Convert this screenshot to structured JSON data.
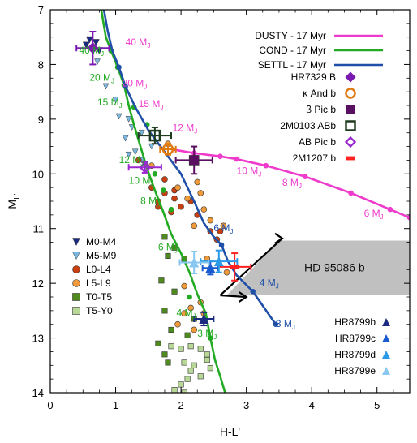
{
  "chart_data": {
    "type": "scatter",
    "xlabel": "H-L'",
    "ylabel": "M_L'",
    "xlim": [
      0,
      5.5
    ],
    "ylim": [
      14,
      7
    ],
    "y_inverted": true,
    "x_ticks": [
      "0",
      "1",
      "2",
      "3",
      "4",
      "5"
    ],
    "y_ticks": [
      "7",
      "8",
      "9",
      "10",
      "11",
      "12",
      "13",
      "14"
    ],
    "colors": {
      "dusty": "#ee3bcc",
      "cond": "#22aa22",
      "settl": "#1f4fa8",
      "m0m4": "#1a2a80",
      "m5m9": "#7ab8e0",
      "l0l4": "#c84010",
      "l5l9": "#f09a3a",
      "t0t5": "#4f8a1e",
      "t5y0": "#b8d898",
      "hr7329": "#7a1ab0",
      "kand": "#e07a10",
      "betapic": "#5a1060",
      "twom0103": "#203c20",
      "abpic": "#9a2ad0",
      "twom1207": "#ff2020",
      "hr8799b": "#1a2a80",
      "hr8799c": "#1a5ad0",
      "hr8799d": "#2a9ae8",
      "hr8799e": "#88c8f0",
      "hd95086": "#c0c0c0"
    },
    "model_legend": [
      {
        "key": "dusty",
        "label": "DUSTY - 17 Myr"
      },
      {
        "key": "cond",
        "label": "COND - 17 Myr"
      },
      {
        "key": "settl",
        "label": "SETTL - 17 Myr"
      }
    ],
    "companion_legend": [
      {
        "key": "hr7329",
        "label": "HR7329 B",
        "marker": "halfdiamond"
      },
      {
        "key": "kand",
        "label": "κ And b",
        "marker": "opencircle"
      },
      {
        "key": "betapic",
        "label": "β Pic b",
        "marker": "square"
      },
      {
        "key": "twom0103",
        "label": "2M0103 ABb",
        "marker": "opensquare"
      },
      {
        "key": "abpic",
        "label": "AB Pic b",
        "marker": "opendiamond"
      },
      {
        "key": "twom1207",
        "label": "2M1207 b",
        "marker": "bar"
      }
    ],
    "field_legend": [
      {
        "key": "m0m4",
        "label": "M0-M4",
        "marker": "triangle-down"
      },
      {
        "key": "m5m9",
        "label": "M5-M9",
        "marker": "triangle-down"
      },
      {
        "key": "l0l4",
        "label": "L0-L4",
        "marker": "circle"
      },
      {
        "key": "l5l9",
        "label": "L5-L9",
        "marker": "circle"
      },
      {
        "key": "t0t5",
        "label": "T0-T5",
        "marker": "square"
      },
      {
        "key": "t5y0",
        "label": "T5-Y0",
        "marker": "square"
      }
    ],
    "hr8799_legend": [
      {
        "key": "hr8799b",
        "label": "HR8799b"
      },
      {
        "key": "hr8799c",
        "label": "HR8799c"
      },
      {
        "key": "hr8799d",
        "label": "HR8799d"
      },
      {
        "key": "hr8799e",
        "label": "HR8799e"
      }
    ],
    "series": [
      {
        "name": "DUSTY - 17 Myr",
        "key": "dusty",
        "x": [
          1.85,
          2.2,
          2.6,
          2.85,
          3.3,
          3.9,
          4.6,
          5.2,
          5.5
        ],
        "y": [
          9.55,
          9.62,
          9.68,
          9.73,
          9.85,
          10.05,
          10.35,
          10.65,
          10.8
        ]
      },
      {
        "name": "COND - 17 Myr",
        "key": "cond",
        "x": [
          0.78,
          0.85,
          0.93,
          1.03,
          1.13,
          1.2,
          1.28,
          1.38,
          1.48,
          1.6,
          1.73,
          1.85,
          2.0,
          2.13,
          2.25,
          2.38,
          2.45,
          2.52,
          2.6,
          2.7
        ],
        "y": [
          7.0,
          7.5,
          7.75,
          8.05,
          8.38,
          8.75,
          9.1,
          9.5,
          9.9,
          10.3,
          10.7,
          11.1,
          11.45,
          11.8,
          12.2,
          12.55,
          13.0,
          13.4,
          13.7,
          14.1
        ],
        "markers_x": [
          0.93,
          1.03,
          1.13,
          1.28,
          1.48,
          1.6,
          1.73,
          1.85,
          2.13,
          2.45
        ],
        "markers_y": [
          7.75,
          8.05,
          8.38,
          8.78,
          9.1,
          10.0,
          10.3,
          10.65,
          12.25,
          13.0
        ]
      },
      {
        "name": "SETTL - 17 Myr",
        "key": "settl",
        "x": [
          0.82,
          0.88,
          0.95,
          1.05,
          1.15,
          1.3,
          1.5,
          1.75,
          2.0,
          2.2,
          2.35,
          2.5,
          2.62,
          2.72,
          2.85,
          3.1,
          3.45
        ],
        "y": [
          7.0,
          7.4,
          7.75,
          8.05,
          8.4,
          8.78,
          9.2,
          9.6,
          10.0,
          10.5,
          10.9,
          11.15,
          11.3,
          11.6,
          11.85,
          12.15,
          12.75
        ],
        "markers_x": [
          1.05,
          1.15,
          2.62,
          3.1,
          3.45
        ],
        "markers_y": [
          8.05,
          8.4,
          11.3,
          12.15,
          12.75
        ]
      }
    ],
    "mass_labels": [
      {
        "text": "40 MJ",
        "x": 1.15,
        "y": 7.65,
        "key": "dusty"
      },
      {
        "text": "20 MJ",
        "x": 1.1,
        "y": 8.4,
        "key": "dusty"
      },
      {
        "text": "15 MJ",
        "x": 1.35,
        "y": 8.78,
        "key": "dusty"
      },
      {
        "text": "12 MJ",
        "x": 1.87,
        "y": 9.22,
        "key": "dusty"
      },
      {
        "text": "10 MJ",
        "x": 2.85,
        "y": 10.0,
        "key": "dusty"
      },
      {
        "text": "8 MJ",
        "x": 3.55,
        "y": 10.22,
        "key": "dusty"
      },
      {
        "text": "6 MJ",
        "x": 4.8,
        "y": 10.78,
        "key": "dusty"
      },
      {
        "text": "40 MJ",
        "x": 0.44,
        "y": 7.8,
        "key": "cond"
      },
      {
        "text": "20 MJ",
        "x": 0.6,
        "y": 8.3,
        "key": "cond"
      },
      {
        "text": "15 MJ",
        "x": 0.72,
        "y": 8.75,
        "key": "cond"
      },
      {
        "text": "12 MJ",
        "x": 1.05,
        "y": 9.8,
        "key": "cond"
      },
      {
        "text": "10 MJ",
        "x": 1.2,
        "y": 10.18,
        "key": "cond"
      },
      {
        "text": "8 MJ",
        "x": 1.38,
        "y": 10.55,
        "key": "cond"
      },
      {
        "text": "6 MJ",
        "x": 1.65,
        "y": 11.4,
        "key": "cond"
      },
      {
        "text": "4 MJ",
        "x": 1.93,
        "y": 12.6,
        "key": "cond"
      },
      {
        "text": "3 MJ",
        "x": 2.25,
        "y": 12.98,
        "key": "cond"
      },
      {
        "text": "6 MJ",
        "x": 2.5,
        "y": 11.05,
        "key": "settl"
      },
      {
        "text": "4 MJ",
        "x": 3.2,
        "y": 12.05,
        "key": "settl"
      },
      {
        "text": "3 MJ",
        "x": 3.45,
        "y": 12.8,
        "key": "settl"
      }
    ],
    "field_points": {
      "m0m4": [
        [
          0.6,
          7.55
        ],
        [
          0.65,
          7.7
        ],
        [
          0.7,
          7.6
        ],
        [
          0.55,
          7.65
        ],
        [
          0.75,
          7.75
        ]
      ],
      "m5m9": [
        [
          0.72,
          7.95
        ],
        [
          0.85,
          8.4
        ],
        [
          1.0,
          8.65
        ],
        [
          1.05,
          8.95
        ],
        [
          1.2,
          9.0
        ],
        [
          1.35,
          9.3
        ],
        [
          1.25,
          9.15
        ],
        [
          1.55,
          9.5
        ],
        [
          1.4,
          9.75
        ],
        [
          1.2,
          9.65
        ],
        [
          1.15,
          9.35
        ],
        [
          1.4,
          9.25
        ],
        [
          1.3,
          9.6
        ],
        [
          1.45,
          9.85
        ]
      ],
      "l0l4": [
        [
          1.35,
          9.75
        ],
        [
          1.55,
          10.25
        ],
        [
          1.65,
          10.5
        ],
        [
          1.75,
          10.35
        ],
        [
          1.9,
          10.45
        ],
        [
          2.0,
          10.6
        ],
        [
          2.25,
          10.75
        ],
        [
          2.45,
          11.05
        ],
        [
          2.55,
          11.2
        ],
        [
          1.65,
          10.6
        ],
        [
          1.9,
          10.3
        ],
        [
          2.15,
          10.5
        ],
        [
          1.75,
          10.1
        ],
        [
          1.85,
          10.7
        ],
        [
          2.6,
          11.05
        ]
      ],
      "l5l9": [
        [
          1.55,
          9.85
        ],
        [
          1.8,
          9.45
        ],
        [
          2.25,
          10.15
        ],
        [
          2.3,
          10.35
        ],
        [
          1.95,
          10.25
        ],
        [
          2.45,
          10.85
        ],
        [
          2.65,
          10.95
        ],
        [
          2.35,
          10.65
        ],
        [
          2.1,
          10.45
        ],
        [
          2.2,
          10.95
        ],
        [
          2.4,
          11.55
        ],
        [
          2.05,
          12.05
        ],
        [
          2.3,
          12.35
        ],
        [
          2.15,
          12.45
        ],
        [
          2.05,
          12.55
        ],
        [
          1.95,
          12.75
        ],
        [
          2.2,
          12.85
        ],
        [
          2.35,
          12.55
        ],
        [
          2.7,
          11.8
        ]
      ],
      "t0t5": [
        [
          1.75,
          11.15
        ],
        [
          1.9,
          11.35
        ],
        [
          1.7,
          11.95
        ],
        [
          1.8,
          11.5
        ],
        [
          2.05,
          11.55
        ],
        [
          1.9,
          12.15
        ],
        [
          1.75,
          12.5
        ],
        [
          2.1,
          12.95
        ],
        [
          1.85,
          12.85
        ],
        [
          1.65,
          13.1
        ],
        [
          1.75,
          13.3
        ],
        [
          1.8,
          13.45
        ],
        [
          2.2,
          12.65
        ]
      ],
      "t5y0": [
        [
          1.85,
          13.15
        ],
        [
          2.0,
          13.2
        ],
        [
          2.15,
          13.15
        ],
        [
          2.3,
          13.2
        ],
        [
          2.4,
          13.3
        ],
        [
          2.2,
          13.5
        ],
        [
          2.05,
          13.45
        ],
        [
          2.15,
          13.6
        ],
        [
          2.1,
          13.75
        ],
        [
          2.0,
          13.85
        ],
        [
          1.9,
          13.95
        ],
        [
          2.05,
          14.0
        ],
        [
          2.3,
          13.7
        ],
        [
          2.4,
          13.4
        ],
        [
          2.45,
          13.55
        ]
      ]
    },
    "companions": [
      {
        "key": "hr7329",
        "marker": "halfdiamond",
        "x": 0.65,
        "y": 7.7,
        "xerr": 0.25,
        "yerr": 0.3
      },
      {
        "key": "kand",
        "marker": "opencircle",
        "x": 1.8,
        "y": 9.55,
        "xerr": 0.12,
        "yerr": 0.1
      },
      {
        "key": "betapic",
        "marker": "square",
        "x": 2.2,
        "y": 9.75,
        "xerr": 0.28,
        "yerr": 0.25
      },
      {
        "key": "twom0103",
        "marker": "opensquare",
        "x": 1.6,
        "y": 9.3,
        "xerr": 0.25,
        "yerr": 0.15
      },
      {
        "key": "abpic",
        "marker": "opendiamond",
        "x": 1.45,
        "y": 9.88,
        "xerr": 0.25,
        "yerr": 0.1
      },
      {
        "key": "twom1207",
        "marker": "bar",
        "x": 2.82,
        "y": 11.7,
        "xerr": 0.25,
        "yerr": 0.25
      },
      {
        "key": "hr8799b",
        "marker": "triangle",
        "x": 2.35,
        "y": 12.65,
        "xerr": 0.15,
        "yerr": 0.12
      },
      {
        "key": "hr8799c",
        "marker": "triangle",
        "x": 2.45,
        "y": 11.72,
        "xerr": 0.12,
        "yerr": 0.12
      },
      {
        "key": "hr8799d",
        "marker": "triangle",
        "x": 2.58,
        "y": 11.6,
        "xerr": 0.28,
        "yerr": 0.2
      },
      {
        "key": "hr8799e",
        "marker": "triangle",
        "x": 2.2,
        "y": 11.62,
        "xerr": 0.22,
        "yerr": 0.2
      }
    ],
    "hd95086": {
      "label": "HD 95086 b",
      "region": [
        [
          3.5,
          11.22
        ],
        [
          5.5,
          11.22
        ],
        [
          5.5,
          12.22
        ],
        [
          2.7,
          12.22
        ]
      ],
      "arrows": [
        [
          2.6,
          12.22,
          3.0,
          12.25
        ],
        [
          2.6,
          12.22,
          3.55,
          11.18
        ]
      ]
    }
  }
}
